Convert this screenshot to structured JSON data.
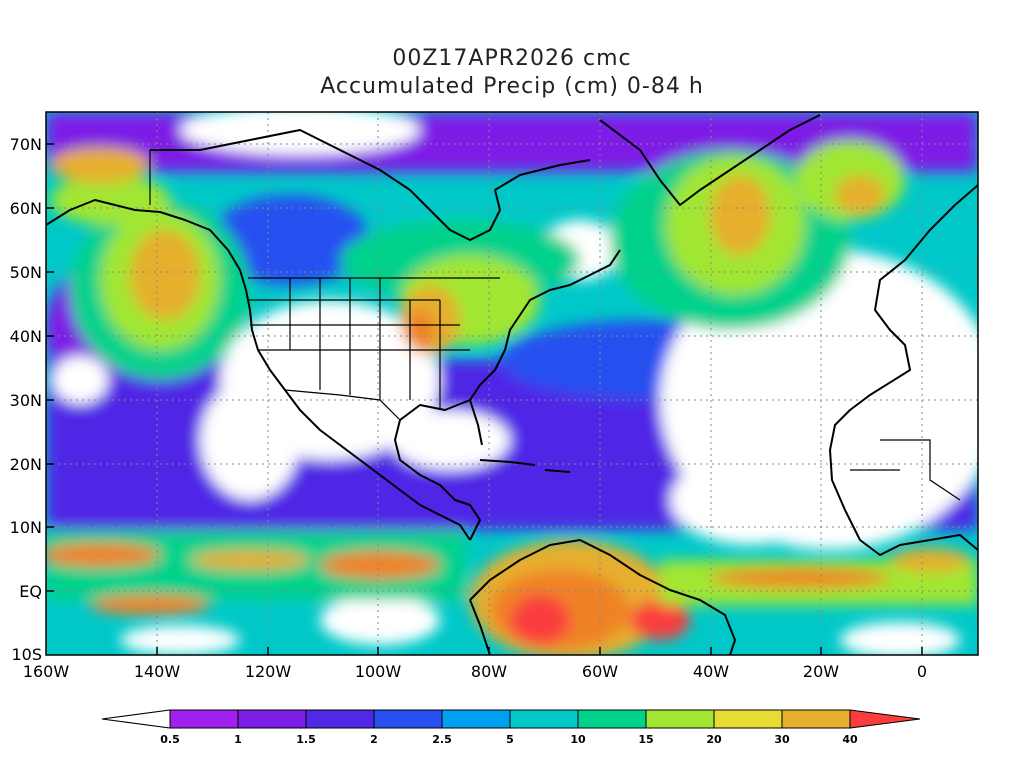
{
  "title": {
    "line1": "00Z17APR2026 cmc",
    "line2": "Accumulated Precip (cm) 0-84 h"
  },
  "map": {
    "lat_labels": [
      "70N",
      "60N",
      "50N",
      "40N",
      "30N",
      "20N",
      "10N",
      "EQ",
      "10S"
    ],
    "lon_labels": [
      "160W",
      "140W",
      "120W",
      "100W",
      "80W",
      "60W",
      "40W",
      "20W",
      "0"
    ],
    "colors": {
      "white": "#ffffff",
      "purple": "#a020f0",
      "violet": "#7d1ee6",
      "indigo": "#5028e6",
      "blue": "#2850f0",
      "sky": "#00a0f0",
      "cyan": "#00c8c8",
      "teal": "#00d28c",
      "lime": "#a0e632",
      "yellow": "#e6dc32",
      "gold": "#e6af2d",
      "orange": "#f08228",
      "red": "#fa3c3c"
    }
  },
  "colorbar": {
    "labels": [
      "0.5",
      "1",
      "1.5",
      "2",
      "2.5",
      "5",
      "10",
      "15",
      "20",
      "30",
      "40"
    ],
    "colors": [
      "#a020f0",
      "#7d1ee6",
      "#5028e6",
      "#2850f0",
      "#00a0f0",
      "#00c8c8",
      "#00d28c",
      "#a0e632",
      "#e6dc32",
      "#e6af2d",
      "#f08228"
    ],
    "end_low": "#ffffff",
    "end_high": "#fa3c3c"
  }
}
